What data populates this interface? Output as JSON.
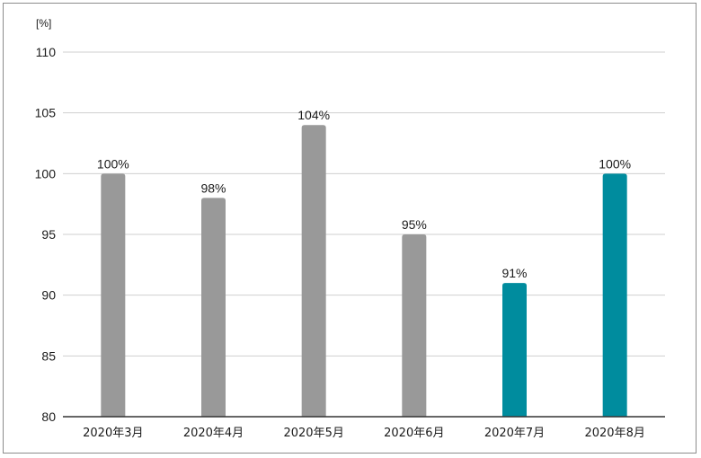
{
  "chart_data": {
    "type": "bar",
    "unit_label": "[%]",
    "categories": [
      "2020年3月",
      "2020年4月",
      "2020年5月",
      "2020年6月",
      "2020年7月",
      "2020年8月"
    ],
    "values": [
      100,
      98,
      104,
      95,
      91,
      100
    ],
    "data_labels": [
      "100%",
      "98%",
      "104%",
      "95%",
      "91%",
      "100%"
    ],
    "bar_colors": [
      "#999999",
      "#999999",
      "#999999",
      "#999999",
      "#008c9e",
      "#008c9e"
    ],
    "yticks": [
      "80",
      "85",
      "90",
      "95",
      "100",
      "105",
      "110"
    ],
    "ylim": [
      80,
      110
    ],
    "grid": true,
    "legend": "none"
  }
}
